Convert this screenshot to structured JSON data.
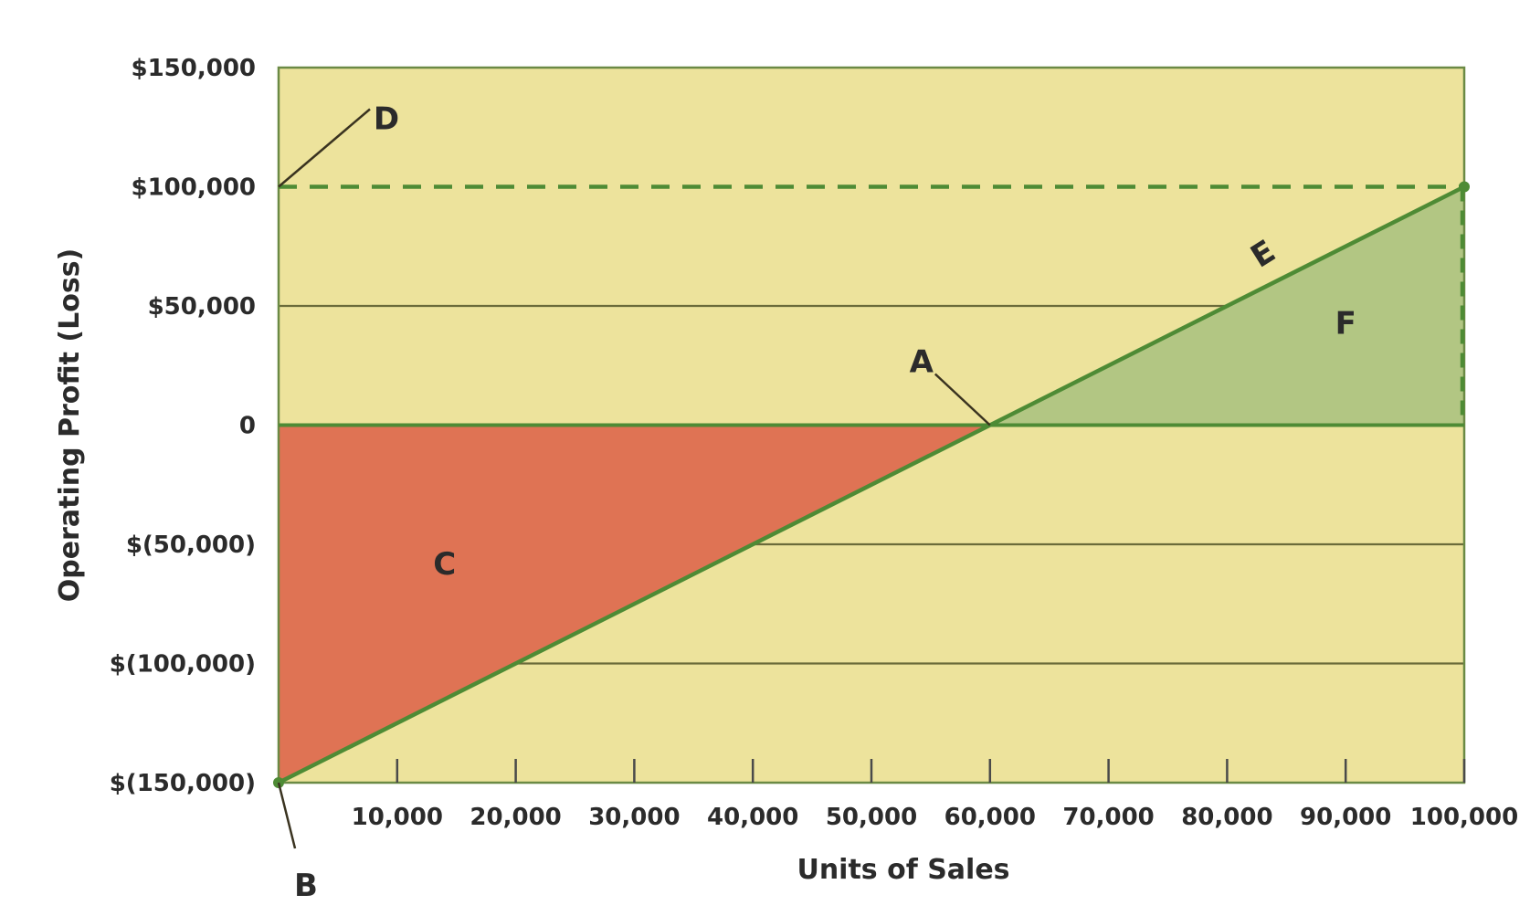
{
  "chart_data": {
    "type": "line",
    "title": "",
    "xlabel": "Units of Sales",
    "ylabel": "Operating Profit (Loss)",
    "xlim": [
      0,
      100000
    ],
    "ylim": [
      -150000,
      150000
    ],
    "x_ticks": [
      {
        "value": 10000,
        "label": "10,000"
      },
      {
        "value": 20000,
        "label": "20,000"
      },
      {
        "value": 30000,
        "label": "30,000"
      },
      {
        "value": 40000,
        "label": "40,000"
      },
      {
        "value": 50000,
        "label": "50,000"
      },
      {
        "value": 60000,
        "label": "60,000"
      },
      {
        "value": 70000,
        "label": "70,000"
      },
      {
        "value": 80000,
        "label": "80,000"
      },
      {
        "value": 90000,
        "label": "90,000"
      },
      {
        "value": 100000,
        "label": "100,000"
      }
    ],
    "y_ticks": [
      {
        "value": 150000,
        "label": "$150,000"
      },
      {
        "value": 100000,
        "label": "$100,000"
      },
      {
        "value": 50000,
        "label": "$50,000"
      },
      {
        "value": 0,
        "label": "0"
      },
      {
        "value": -50000,
        "label": "$(50,000)"
      },
      {
        "value": -100000,
        "label": "$(100,000)"
      },
      {
        "value": -150000,
        "label": "$(150,000)"
      }
    ],
    "series": [
      {
        "x": [
          0,
          100000
        ],
        "y": [
          -150000,
          100000
        ]
      }
    ],
    "reference_line": {
      "y": 100000,
      "style": "dashed"
    },
    "break_even": {
      "x": 60000,
      "y": 0
    },
    "loss_area": {
      "from_x": 0,
      "to_x": 60000
    },
    "profit_area": {
      "from_x": 60000,
      "to_x": 100000
    },
    "callouts": [
      {
        "label": "A",
        "x": 60000,
        "y": 0
      },
      {
        "label": "B",
        "x": 0,
        "y": -150000
      },
      {
        "label": "C",
        "x": 14000,
        "y": -58000
      },
      {
        "label": "D",
        "x": 0,
        "y": 100000
      },
      {
        "label": "E",
        "x": 83000,
        "y": 72000
      },
      {
        "label": "F",
        "x": 90000,
        "y": 43000
      }
    ],
    "grid": true,
    "colors": {
      "plot_background": "#ede39c",
      "line": "#4e8b35",
      "loss_fill": "#df7354",
      "profit_fill": "#b2c683",
      "gridline": "#6b6b3a",
      "frame": "#6b8a45"
    }
  }
}
